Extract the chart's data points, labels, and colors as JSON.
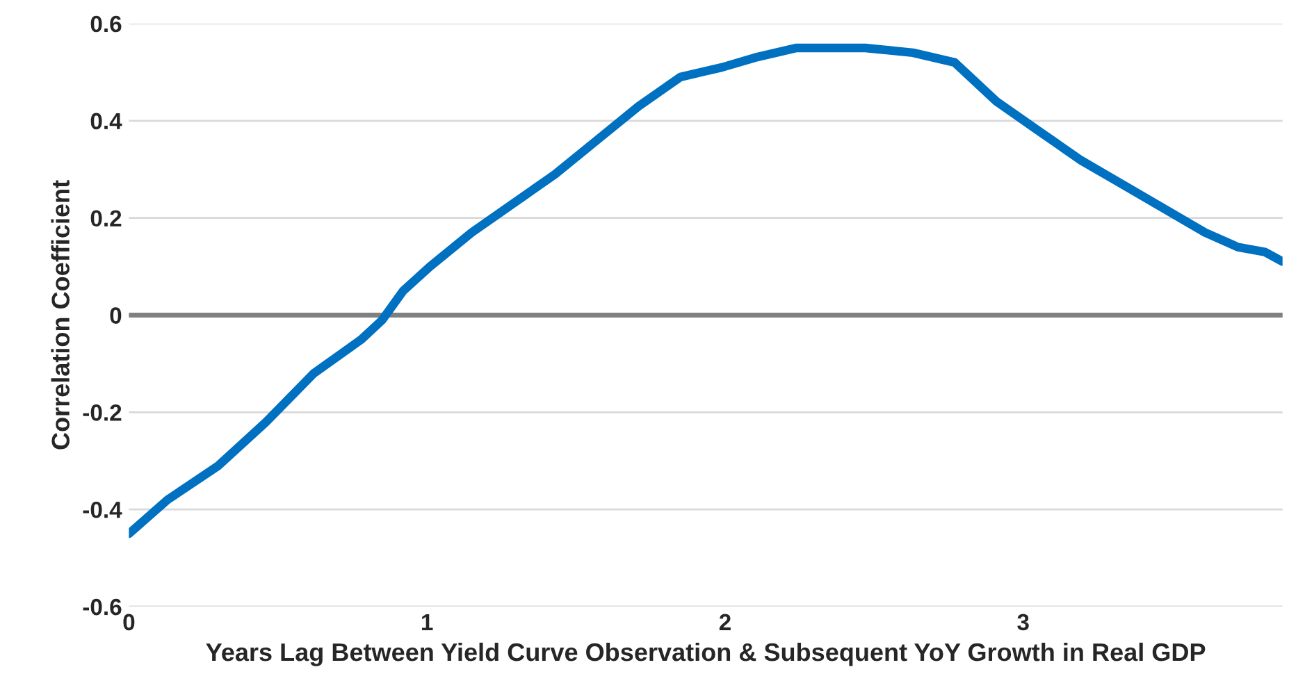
{
  "chart_data": {
    "type": "line",
    "xlabel": "Years Lag Between Yield Curve Observation & Subsequent YoY Growth in Real GDP",
    "ylabel": "Correlation Coefficient",
    "xlim": [
      0,
      3.87
    ],
    "xticks": [
      0,
      1,
      2,
      3
    ],
    "ylim": [
      -0.6,
      0.6
    ],
    "yticks": [
      -0.6,
      -0.4,
      -0.2,
      0,
      0.2,
      0.4,
      0.6
    ],
    "grid": "y",
    "marker": "none",
    "line_style": "solid",
    "ref_lines": [
      {
        "axis": "y",
        "value": 0,
        "color": "#808080"
      }
    ],
    "series": [
      {
        "color": "#0070c0",
        "x": [
          0,
          0.13,
          0.3,
          0.46,
          0.62,
          0.78,
          0.85,
          0.92,
          1.01,
          1.15,
          1.29,
          1.43,
          1.57,
          1.71,
          1.85,
          1.99,
          2.1,
          2.24,
          2.36,
          2.47,
          2.63,
          2.77,
          2.91,
          3.05,
          3.19,
          3.33,
          3.47,
          3.61,
          3.72,
          3.81,
          3.87
        ],
        "values": [
          -0.45,
          -0.38,
          -0.31,
          -0.22,
          -0.12,
          -0.05,
          -0.01,
          0.05,
          0.1,
          0.17,
          0.23,
          0.29,
          0.36,
          0.43,
          0.49,
          0.51,
          0.53,
          0.55,
          0.55,
          0.55,
          0.54,
          0.52,
          0.44,
          0.38,
          0.32,
          0.27,
          0.22,
          0.17,
          0.14,
          0.13,
          0.11
        ]
      }
    ]
  }
}
